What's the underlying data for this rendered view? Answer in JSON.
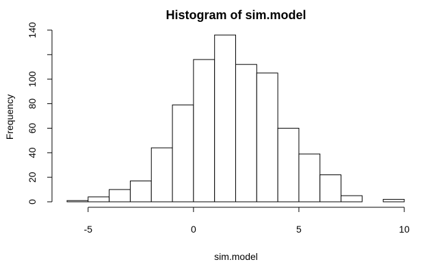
{
  "chart_data": {
    "type": "bar",
    "title": "Histogram of sim.model",
    "xlabel": "sim.model",
    "ylabel": "Frequency",
    "bins": [
      {
        "start": -6,
        "end": -5,
        "count": 1
      },
      {
        "start": -5,
        "end": -4,
        "count": 4
      },
      {
        "start": -4,
        "end": -3,
        "count": 10
      },
      {
        "start": -3,
        "end": -2,
        "count": 17
      },
      {
        "start": -2,
        "end": -1,
        "count": 44
      },
      {
        "start": -1,
        "end": 0,
        "count": 79
      },
      {
        "start": 0,
        "end": 1,
        "count": 116
      },
      {
        "start": 1,
        "end": 2,
        "count": 136
      },
      {
        "start": 2,
        "end": 3,
        "count": 112
      },
      {
        "start": 3,
        "end": 4,
        "count": 105
      },
      {
        "start": 4,
        "end": 5,
        "count": 60
      },
      {
        "start": 5,
        "end": 6,
        "count": 39
      },
      {
        "start": 6,
        "end": 7,
        "count": 22
      },
      {
        "start": 7,
        "end": 8,
        "count": 5
      },
      {
        "start": 8,
        "end": 9,
        "count": 0
      },
      {
        "start": 9,
        "end": 10,
        "count": 2
      }
    ],
    "xlim": [
      -6,
      10
    ],
    "ylim": [
      0,
      140
    ],
    "x_ticks": [
      -5,
      0,
      5,
      10
    ],
    "x_tick_labels": [
      "-5",
      "0",
      "5",
      "10"
    ],
    "y_ticks": [
      0,
      20,
      40,
      60,
      80,
      100,
      120,
      140
    ],
    "y_tick_labels": [
      "0",
      "20",
      "40",
      "60",
      "80",
      "100",
      "",
      "140"
    ],
    "grid": false,
    "legend": "none"
  }
}
